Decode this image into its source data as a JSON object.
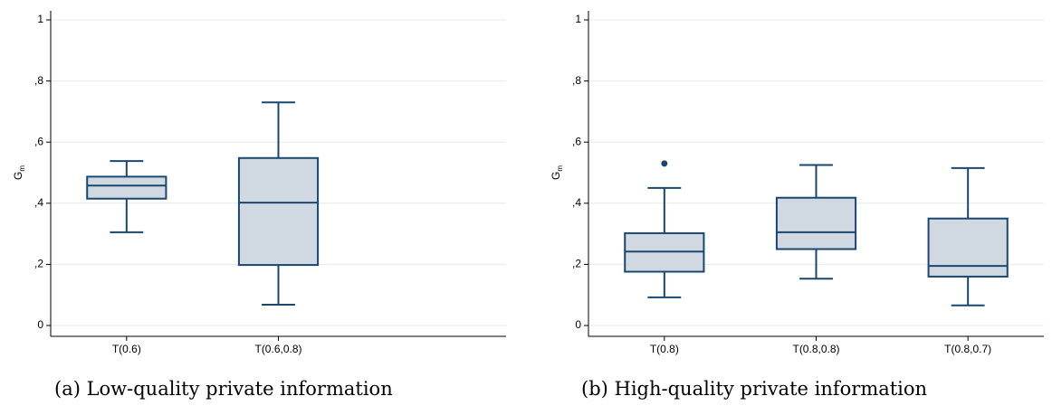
{
  "panels": [
    {
      "caption": "(a) Low-quality private information",
      "chart_data": {
        "type": "box",
        "ylabel": "G",
        "ylabel_subscript": "m",
        "ylim": [
          0,
          1
        ],
        "yticks": [
          0,
          0.2,
          0.4,
          0.6,
          0.8,
          1
        ],
        "ytick_labels": [
          "0",
          ",2",
          ",4",
          ",6",
          ",8",
          "1"
        ],
        "grid": true,
        "categories": [
          "T(0.6)",
          "T(0.6,0.8)",
          ""
        ],
        "boxes": [
          {
            "category": "T(0.6)",
            "whisker_low": 0.305,
            "q1": 0.415,
            "median": 0.458,
            "q3": 0.487,
            "whisker_high": 0.538,
            "outliers": []
          },
          {
            "category": "T(0.6,0.8)",
            "whisker_low": 0.068,
            "q1": 0.198,
            "median": 0.402,
            "q3": 0.548,
            "whisker_high": 0.73,
            "outliers": []
          }
        ]
      }
    },
    {
      "caption": "(b) High-quality private information",
      "chart_data": {
        "type": "box",
        "ylabel": "G",
        "ylabel_subscript": "m",
        "ylim": [
          0,
          1
        ],
        "yticks": [
          0,
          0.2,
          0.4,
          0.6,
          0.8,
          1
        ],
        "ytick_labels": [
          "0",
          ",2",
          ",4",
          ",6",
          ",8",
          "1"
        ],
        "grid": true,
        "categories": [
          "T(0.8)",
          "T(0.8,0.8)",
          "T(0.8,0.7)"
        ],
        "boxes": [
          {
            "category": "T(0.8)",
            "whisker_low": 0.092,
            "q1": 0.176,
            "median": 0.242,
            "q3": 0.302,
            "whisker_high": 0.45,
            "outliers": [
              0.53
            ]
          },
          {
            "category": "T(0.8,0.8)",
            "whisker_low": 0.153,
            "q1": 0.25,
            "median": 0.305,
            "q3": 0.418,
            "whisker_high": 0.525,
            "outliers": []
          },
          {
            "category": "T(0.8,0.7)",
            "whisker_low": 0.066,
            "q1": 0.16,
            "median": 0.195,
            "q3": 0.35,
            "whisker_high": 0.515,
            "outliers": []
          }
        ]
      }
    }
  ],
  "colors": {
    "box_fill": "#d0d9e2",
    "box_stroke": "#1a476f",
    "grid": "#e6eaee",
    "axis": "#000000"
  }
}
